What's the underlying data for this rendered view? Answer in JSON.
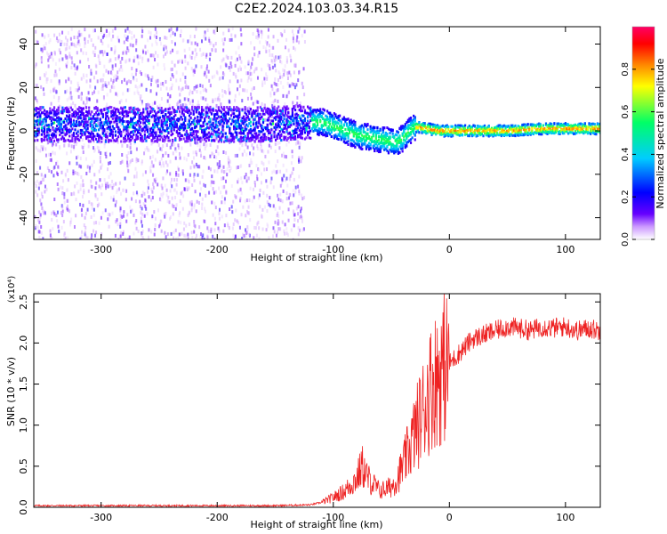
{
  "figure_title": "C2E2.2024.103.03.34.R15",
  "chart_data": [
    {
      "type": "heatmap",
      "title": "C2E2.2024.103.03.34.R15",
      "xlabel": "Height of straight line (km)",
      "ylabel": "Frequency (Hz)",
      "xlim": [
        -358,
        130
      ],
      "ylim": [
        -50,
        48
      ],
      "x_ticks": [
        -300,
        -200,
        -100,
        0,
        100
      ],
      "x_tick_labels": [
        "-300",
        "-200",
        "-100",
        "0",
        "100"
      ],
      "y_ticks": [
        -40,
        -20,
        0,
        20,
        40
      ],
      "y_tick_labels": [
        "-40",
        "-20",
        "0",
        "20",
        "40"
      ],
      "colorbar": {
        "label": "Normalized spectral amplitude",
        "range": [
          0,
          1
        ],
        "ticks": [
          0.0,
          0.2,
          0.4,
          0.6,
          0.8
        ],
        "tick_labels": [
          "0.0",
          "0.2",
          "0.4",
          "0.6",
          "0.8"
        ],
        "colormap": "rainbow (white-purple-blue-cyan-green-yellow-red-magenta)",
        "stops": [
          "#ffffff",
          "#cc99ff",
          "#6600ff",
          "#0000ff",
          "#00ccff",
          "#00ff66",
          "#ffff00",
          "#ff8800",
          "#ff0000",
          "#ff0066"
        ]
      },
      "ridge": {
        "x": [
          -358,
          -300,
          -250,
          -200,
          -150,
          -130,
          -110,
          -100,
          -90,
          -80,
          -70,
          -60,
          -50,
          -45,
          -40,
          -35,
          -30,
          -20,
          -10,
          0,
          20,
          50,
          80,
          100,
          130
        ],
        "frequency": [
          3,
          3,
          3,
          3,
          3,
          4,
          4,
          2,
          0,
          -2,
          -3,
          -4,
          -5,
          -5,
          -3,
          0,
          2,
          1,
          0,
          0,
          0,
          0,
          1,
          1,
          1
        ]
      },
      "grid": false,
      "legend": "none"
    },
    {
      "type": "line",
      "title": "",
      "xlabel": "Height of straight line (km)",
      "ylabel": "SNR (10 * v/v)",
      "y_multiplier_label": "(x10⁴)",
      "xlim": [
        -358,
        130
      ],
      "ylim": [
        0,
        2.6
      ],
      "x_ticks": [
        -300,
        -200,
        -100,
        0,
        100
      ],
      "x_tick_labels": [
        "-300",
        "-200",
        "-100",
        "0",
        "100"
      ],
      "y_ticks": [
        0.0,
        0.5,
        1.0,
        1.5,
        2.0,
        2.5
      ],
      "y_tick_labels": [
        "0.0",
        "0.5",
        "1.0",
        "1.5",
        "2.0",
        "2.5"
      ],
      "series": [
        {
          "color": "#ee2222",
          "x": [
            -358,
            -300,
            -250,
            -200,
            -150,
            -120,
            -110,
            -100,
            -90,
            -80,
            -75,
            -70,
            -60,
            -50,
            -45,
            -40,
            -35,
            -30,
            -25,
            -20,
            -15,
            -10,
            -5,
            0,
            10,
            20,
            30,
            40,
            50,
            60,
            70,
            80,
            90,
            100,
            110,
            120,
            130
          ],
          "y": [
            0.02,
            0.02,
            0.02,
            0.02,
            0.02,
            0.03,
            0.06,
            0.12,
            0.2,
            0.35,
            0.5,
            0.35,
            0.2,
            0.25,
            0.35,
            0.5,
            0.7,
            0.9,
            1.1,
            1.3,
            1.5,
            1.6,
            1.7,
            1.75,
            1.9,
            2.05,
            2.1,
            2.15,
            2.2,
            2.18,
            2.15,
            2.2,
            2.18,
            2.2,
            2.15,
            2.18,
            2.15
          ]
        }
      ],
      "grid": false,
      "legend": "none"
    }
  ]
}
